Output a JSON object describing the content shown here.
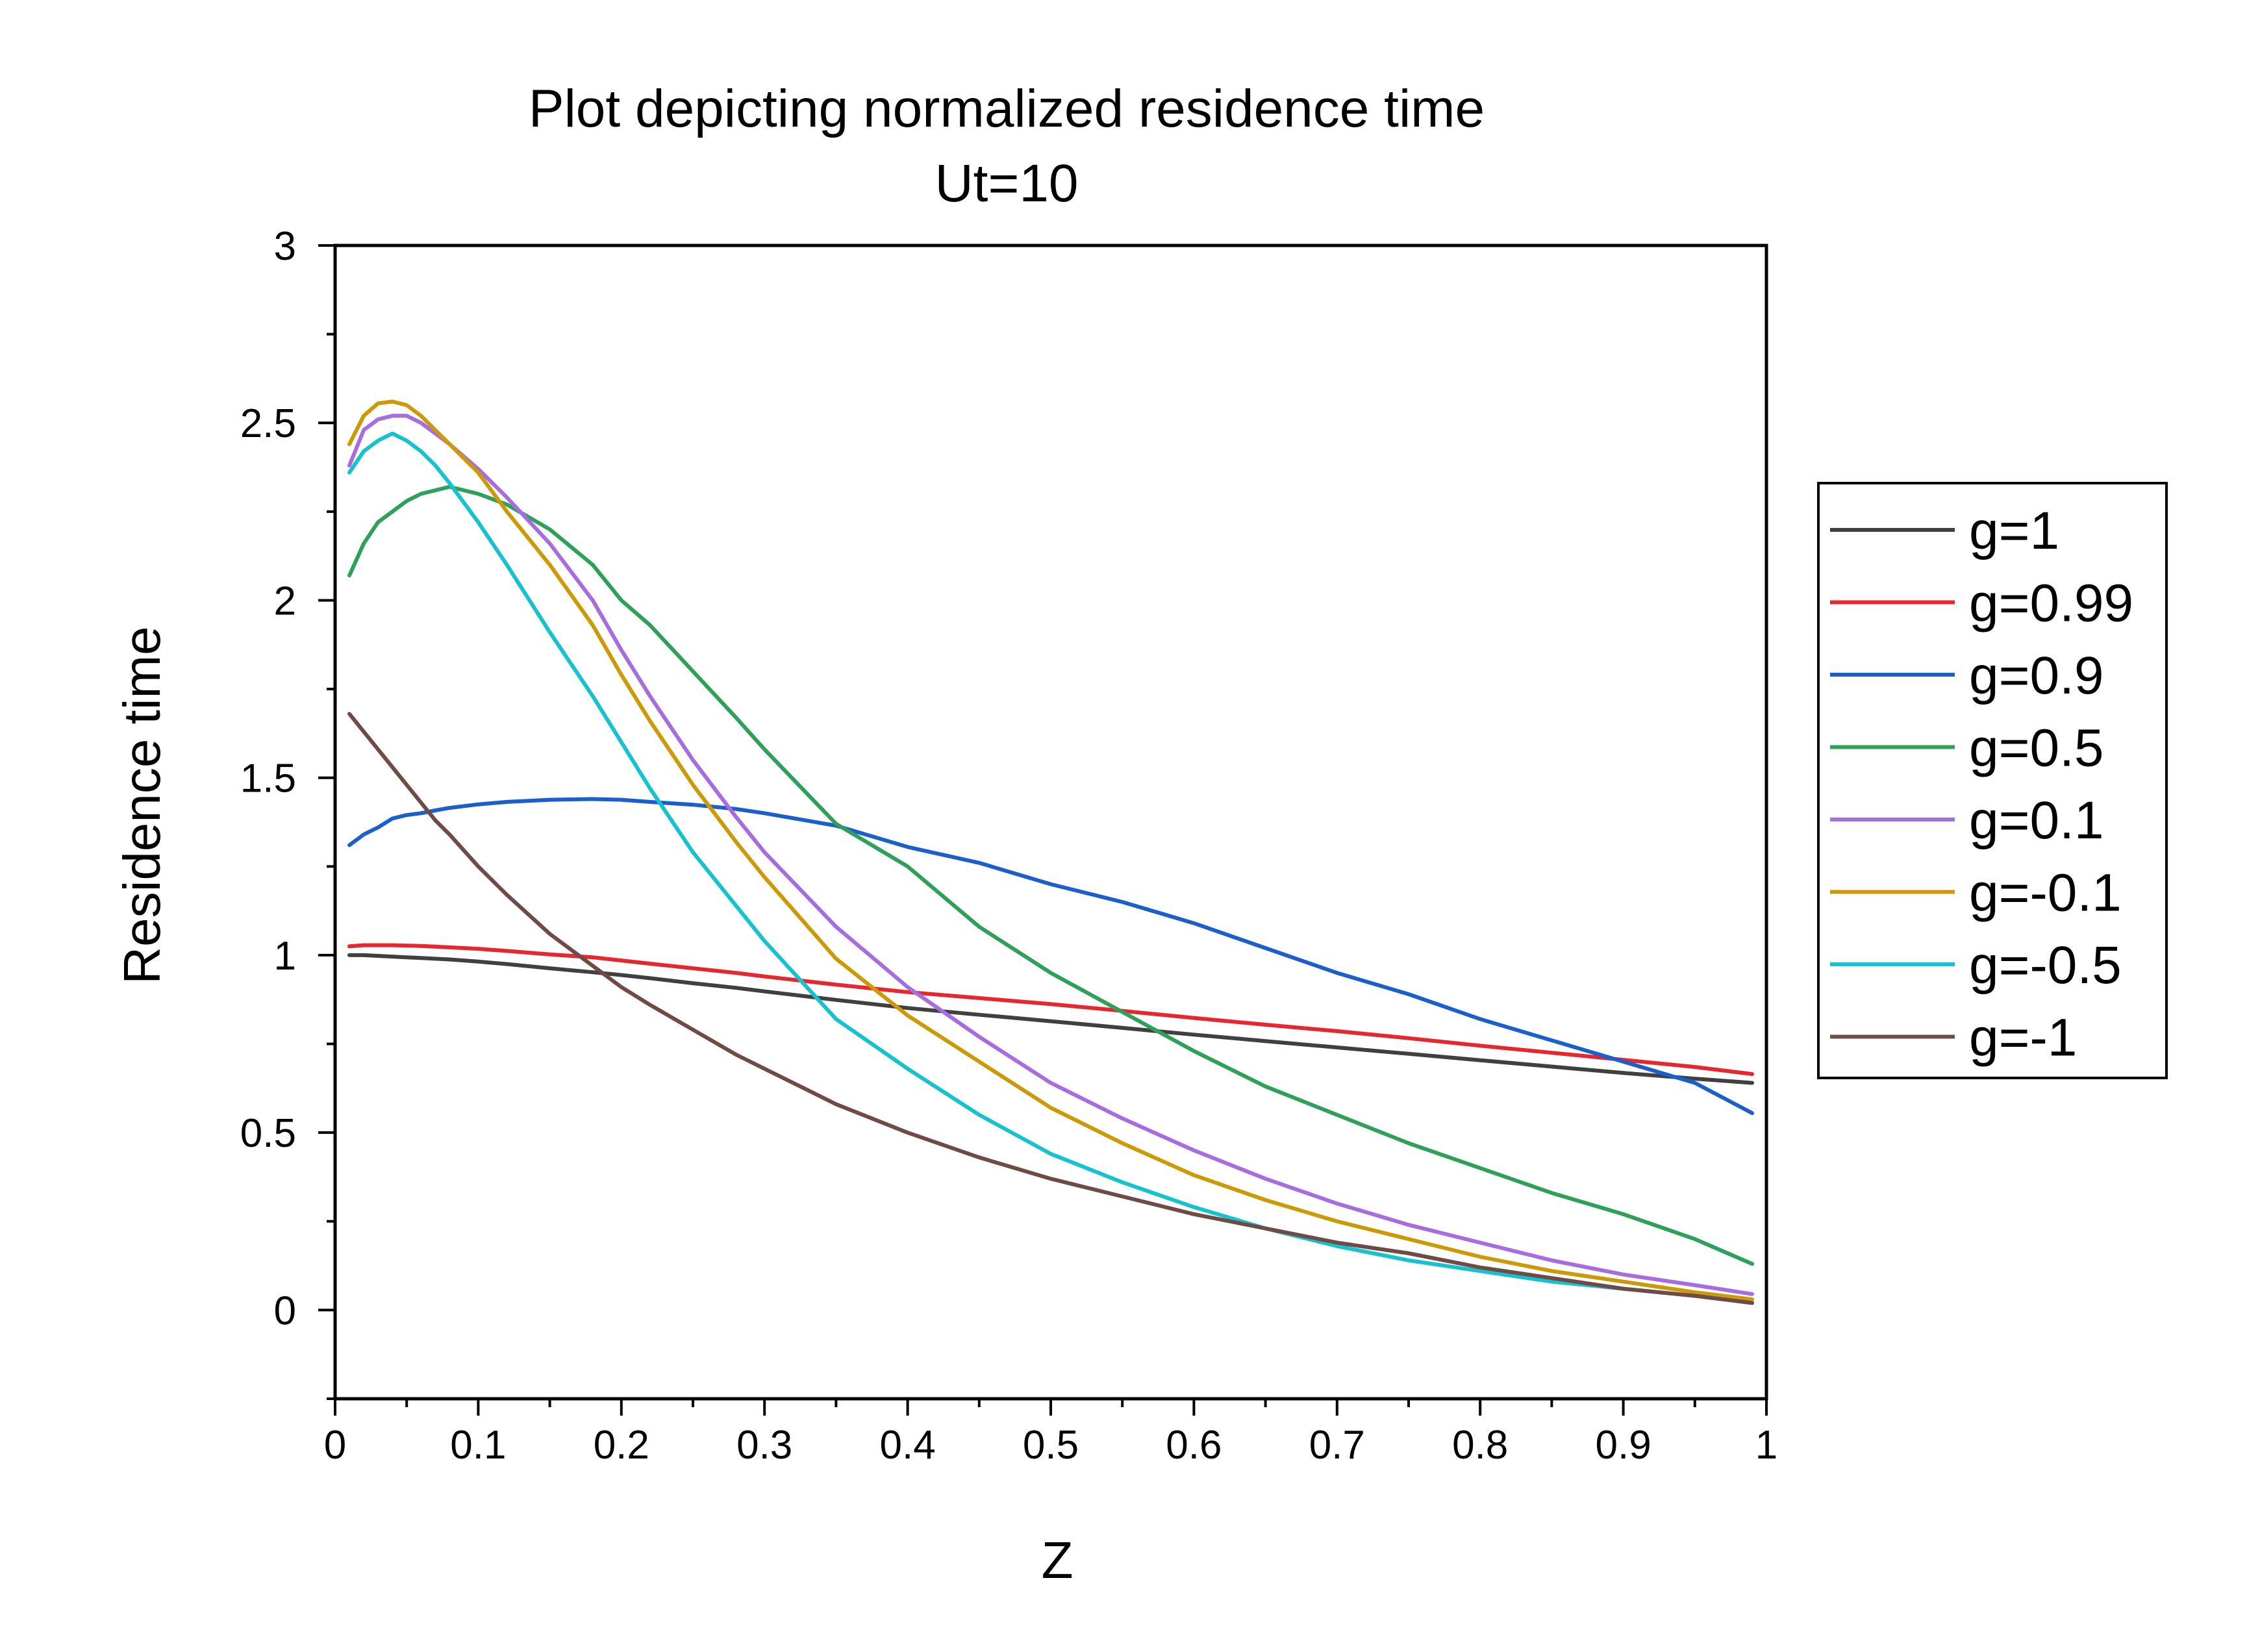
{
  "chart_data": {
    "type": "line",
    "title": "Plot depicting normalized residence time",
    "subtitle": "Ut=10",
    "xlabel": "Z",
    "ylabel": "Residence time",
    "xlim": [
      0,
      1
    ],
    "ylim": [
      -0.25,
      3
    ],
    "xticks": [
      0,
      0.1,
      0.2,
      0.3,
      0.4,
      0.5,
      0.6,
      0.7,
      0.8,
      0.9,
      1
    ],
    "xtick_labels": [
      "0",
      "0.1",
      "0.2",
      "0.3",
      "0.4",
      "0.5",
      "0.6",
      "0.7",
      "0.8",
      "0.9",
      "1"
    ],
    "yticks": [
      0,
      0.5,
      1,
      1.5,
      2,
      2.5,
      3
    ],
    "ytick_labels": [
      "0",
      "0.5",
      "1",
      "1.5",
      "2",
      "2.5",
      "3"
    ],
    "grid": false,
    "legend": "right",
    "x": [
      0.01,
      0.02,
      0.03,
      0.04,
      0.05,
      0.06,
      0.07,
      0.08,
      0.1,
      0.12,
      0.15,
      0.18,
      0.2,
      0.22,
      0.25,
      0.28,
      0.3,
      0.35,
      0.4,
      0.45,
      0.5,
      0.55,
      0.6,
      0.65,
      0.7,
      0.75,
      0.8,
      0.85,
      0.9,
      0.95,
      0.99
    ],
    "series": [
      {
        "name": "g=1",
        "color": "#404040",
        "values": [
          1.0,
          1.0,
          0.998,
          0.996,
          0.994,
          0.992,
          0.99,
          0.988,
          0.982,
          0.975,
          0.963,
          0.952,
          0.944,
          0.935,
          0.921,
          0.908,
          0.898,
          0.874,
          0.851,
          0.832,
          0.814,
          0.795,
          0.776,
          0.758,
          0.74,
          0.722,
          0.704,
          0.686,
          0.668,
          0.652,
          0.64
        ]
      },
      {
        "name": "g=0.99",
        "color": "#e8262d",
        "values": [
          1.025,
          1.028,
          1.028,
          1.028,
          1.027,
          1.026,
          1.024,
          1.022,
          1.018,
          1.012,
          1.002,
          0.994,
          0.985,
          0.976,
          0.963,
          0.95,
          0.94,
          0.917,
          0.896,
          0.879,
          0.862,
          0.843,
          0.823,
          0.804,
          0.786,
          0.766,
          0.745,
          0.725,
          0.705,
          0.685,
          0.665
        ]
      },
      {
        "name": "g=0.9",
        "color": "#1b5fcc",
        "values": [
          1.31,
          1.34,
          1.36,
          1.385,
          1.395,
          1.4,
          1.408,
          1.415,
          1.425,
          1.432,
          1.438,
          1.44,
          1.438,
          1.432,
          1.424,
          1.412,
          1.4,
          1.365,
          1.305,
          1.26,
          1.2,
          1.15,
          1.09,
          1.02,
          0.95,
          0.89,
          0.82,
          0.76,
          0.7,
          0.64,
          0.555
        ]
      },
      {
        "name": "g=0.5",
        "color": "#2ea05a",
        "values": [
          2.07,
          2.16,
          2.22,
          2.25,
          2.28,
          2.3,
          2.31,
          2.32,
          2.3,
          2.27,
          2.2,
          2.1,
          2.0,
          1.93,
          1.8,
          1.67,
          1.58,
          1.37,
          1.25,
          1.08,
          0.95,
          0.84,
          0.73,
          0.63,
          0.55,
          0.47,
          0.4,
          0.33,
          0.27,
          0.2,
          0.13
        ]
      },
      {
        "name": "g=0.1",
        "color": "#a66ce0",
        "values": [
          2.38,
          2.48,
          2.51,
          2.52,
          2.52,
          2.5,
          2.47,
          2.44,
          2.37,
          2.29,
          2.16,
          2.0,
          1.86,
          1.73,
          1.55,
          1.39,
          1.29,
          1.08,
          0.91,
          0.77,
          0.64,
          0.54,
          0.45,
          0.37,
          0.3,
          0.24,
          0.19,
          0.14,
          0.1,
          0.07,
          0.045
        ]
      },
      {
        "name": "g=-0.1",
        "color": "#cc9a06",
        "values": [
          2.44,
          2.52,
          2.555,
          2.56,
          2.55,
          2.52,
          2.48,
          2.44,
          2.36,
          2.25,
          2.1,
          1.93,
          1.79,
          1.66,
          1.48,
          1.32,
          1.22,
          0.99,
          0.83,
          0.7,
          0.57,
          0.47,
          0.38,
          0.31,
          0.25,
          0.2,
          0.15,
          0.11,
          0.08,
          0.05,
          0.03
        ]
      },
      {
        "name": "g=-0.5",
        "color": "#16c2cf",
        "values": [
          2.36,
          2.42,
          2.45,
          2.47,
          2.45,
          2.42,
          2.38,
          2.33,
          2.22,
          2.1,
          1.91,
          1.73,
          1.6,
          1.47,
          1.29,
          1.14,
          1.04,
          0.82,
          0.68,
          0.55,
          0.44,
          0.36,
          0.29,
          0.23,
          0.18,
          0.14,
          0.11,
          0.08,
          0.06,
          0.04,
          0.02
        ]
      },
      {
        "name": "g=-1",
        "color": "#704a44",
        "values": [
          1.68,
          1.63,
          1.58,
          1.53,
          1.48,
          1.43,
          1.38,
          1.34,
          1.25,
          1.17,
          1.06,
          0.97,
          0.91,
          0.86,
          0.79,
          0.72,
          0.68,
          0.58,
          0.5,
          0.43,
          0.37,
          0.32,
          0.27,
          0.23,
          0.19,
          0.16,
          0.12,
          0.09,
          0.06,
          0.04,
          0.02
        ]
      }
    ]
  }
}
